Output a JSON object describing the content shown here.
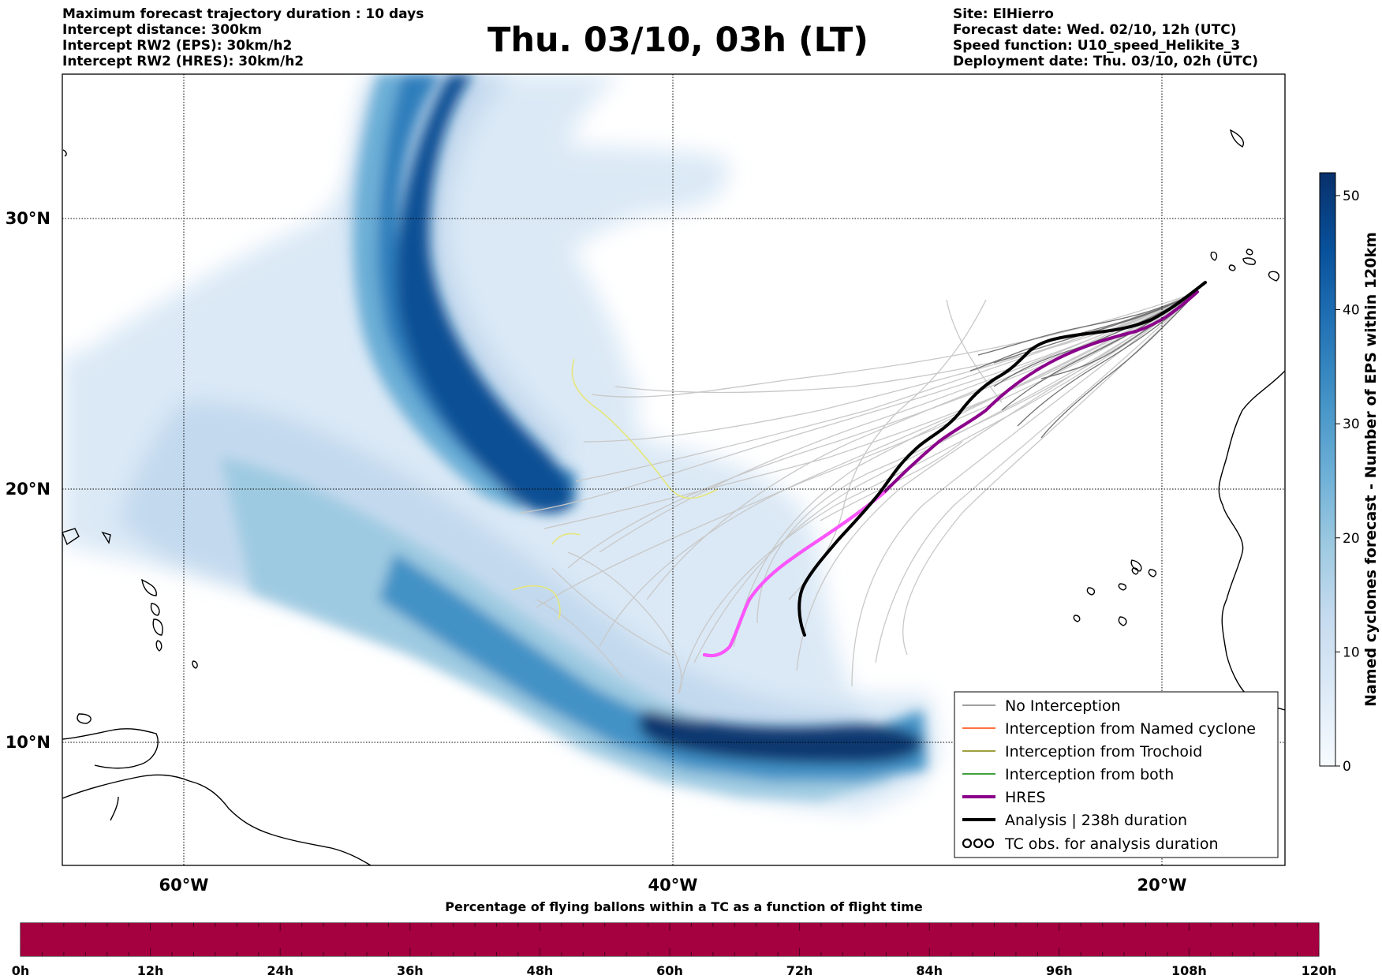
{
  "header_left": {
    "line1": "Maximum forecast trajectory duration : 10 days",
    "line2": "Intercept distance: 300km",
    "line3": "Intercept RW2 (EPS):  30km/h2",
    "line4": "Intercept RW2 (HRES): 30km/h2"
  },
  "title": "Thu. 03/10, 03h (LT)",
  "header_right": {
    "line1": "Site: ElHierro",
    "line2": "Forecast date: Wed. 02/10, 12h (UTC)",
    "line3": "Speed function: U10_speed_Helikite_3",
    "line4": "Deployment date: Thu. 03/10, 02h (UTC)"
  },
  "map": {
    "lat_labels": [
      "30°N",
      "20°N",
      "10°N"
    ],
    "lon_labels": [
      "60°W",
      "40°W",
      "20°W"
    ],
    "lat_values": [
      30,
      20,
      10
    ],
    "lon_values": [
      -60,
      -40,
      -20
    ],
    "lon_range": [
      -65,
      -15
    ],
    "lat_range": [
      5.4,
      35.3
    ],
    "colors": {
      "hres": "#8b008b",
      "hres_recent": "#ff55ff",
      "analysis": "#000000",
      "eps_tracks": "#c8c8c8",
      "eps_tracks_dark": "#6e6e6e",
      "yellow": "#e8e870",
      "density_max": "#08306b"
    }
  },
  "legend": {
    "items": [
      {
        "label": "No Interception",
        "color": "#808080",
        "width": 1.5
      },
      {
        "label": "Interception from Named cyclone",
        "color": "#ff4500",
        "width": 1.5
      },
      {
        "label": "Interception from Trochoid",
        "color": "#808000",
        "width": 1.5
      },
      {
        "label": "Interception from both",
        "color": "#008000",
        "width": 1.5
      },
      {
        "label": "HRES",
        "color": "#8b008b",
        "width": 4
      },
      {
        "label": "Analysis | 238h duration",
        "color": "#000000",
        "width": 4
      }
    ],
    "tc_obs_symbol": "ᴒᴒᴒ",
    "tc_obs_label": "TC obs. for analysis duration"
  },
  "colorbar": {
    "label": "Named cyclones forecast - Number of EPS within 120km",
    "ticks": [
      "50",
      "40",
      "30",
      "20",
      "10",
      "0"
    ],
    "tick_values": [
      50,
      40,
      30,
      20,
      10,
      0
    ],
    "max": 52,
    "gradient": [
      "#f7fbff",
      "#deebf7",
      "#c6dbef",
      "#9ecae1",
      "#6baed6",
      "#4292c6",
      "#2171b5",
      "#08519c",
      "#08306b"
    ]
  },
  "bottom_bar": {
    "title": "Percentage of flying ballons within a TC as a function of flight time",
    "ticks": [
      "0h",
      "12h",
      "24h",
      "36h",
      "48h",
      "60h",
      "72h",
      "84h",
      "96h",
      "108h",
      "120h"
    ],
    "fill_fraction": 1.0,
    "color": "#a50040"
  }
}
